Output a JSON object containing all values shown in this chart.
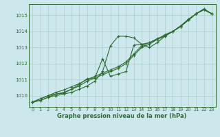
{
  "title": "Graphe pression niveau de la mer (hPa)",
  "background_color": "#cce8ec",
  "grid_color": "#aacccc",
  "line_color": "#2d6a2d",
  "xlim": [
    -0.5,
    23.5
  ],
  "ylim": [
    1009.3,
    1015.7
  ],
  "yticks": [
    1010,
    1011,
    1012,
    1013,
    1014,
    1015
  ],
  "xticks": [
    0,
    1,
    2,
    3,
    4,
    5,
    6,
    7,
    8,
    9,
    10,
    11,
    12,
    13,
    14,
    15,
    16,
    17,
    18,
    19,
    20,
    21,
    22,
    23
  ],
  "series": [
    {
      "x": [
        0,
        1,
        2,
        3,
        4,
        5,
        6,
        7,
        8,
        9,
        10,
        11,
        12,
        13,
        14,
        15,
        16,
        17,
        18,
        19,
        20,
        21,
        22,
        23
      ],
      "y": [
        1009.6,
        1009.7,
        1009.9,
        1010.0,
        1010.1,
        1010.2,
        1010.4,
        1010.6,
        1010.9,
        1011.5,
        1013.1,
        1013.7,
        1013.7,
        1013.6,
        1013.2,
        1013.0,
        1013.3,
        1013.7,
        1014.0,
        1014.3,
        1014.7,
        1015.1,
        1015.35,
        1015.1
      ]
    },
    {
      "x": [
        0,
        1,
        2,
        3,
        4,
        5,
        6,
        7,
        8,
        9,
        10,
        11,
        12,
        13,
        14,
        15,
        16,
        17,
        18,
        19,
        20,
        21,
        22,
        23
      ],
      "y": [
        1009.6,
        1009.7,
        1009.9,
        1010.1,
        1010.2,
        1010.4,
        1010.6,
        1010.9,
        1011.1,
        1011.3,
        1011.5,
        1011.7,
        1012.0,
        1012.5,
        1013.0,
        1013.2,
        1013.5,
        1013.7,
        1014.0,
        1014.3,
        1014.7,
        1015.1,
        1015.35,
        1015.1
      ]
    },
    {
      "x": [
        0,
        1,
        2,
        3,
        4,
        5,
        6,
        7,
        8,
        9,
        10,
        11,
        12,
        13,
        14,
        15,
        16,
        17,
        18,
        19,
        20,
        21,
        22,
        23
      ],
      "y": [
        1009.6,
        1009.8,
        1010.0,
        1010.1,
        1010.15,
        1010.4,
        1010.7,
        1011.05,
        1011.1,
        1012.3,
        1011.2,
        1011.35,
        1011.5,
        1013.15,
        1013.2,
        1013.3,
        1013.5,
        1013.8,
        1014.0,
        1014.35,
        1014.75,
        1015.1,
        1015.4,
        1015.1
      ]
    },
    {
      "x": [
        0,
        1,
        2,
        3,
        4,
        5,
        6,
        7,
        8,
        9,
        10,
        11,
        12,
        13,
        14,
        15,
        16,
        17,
        18,
        19,
        20,
        21,
        22,
        23
      ],
      "y": [
        1009.6,
        1009.8,
        1010.0,
        1010.2,
        1010.35,
        1010.55,
        1010.75,
        1011.0,
        1011.2,
        1011.4,
        1011.6,
        1011.8,
        1012.1,
        1012.6,
        1013.1,
        1013.3,
        1013.55,
        1013.75,
        1014.0,
        1014.3,
        1014.75,
        1015.1,
        1015.4,
        1015.1
      ]
    }
  ]
}
